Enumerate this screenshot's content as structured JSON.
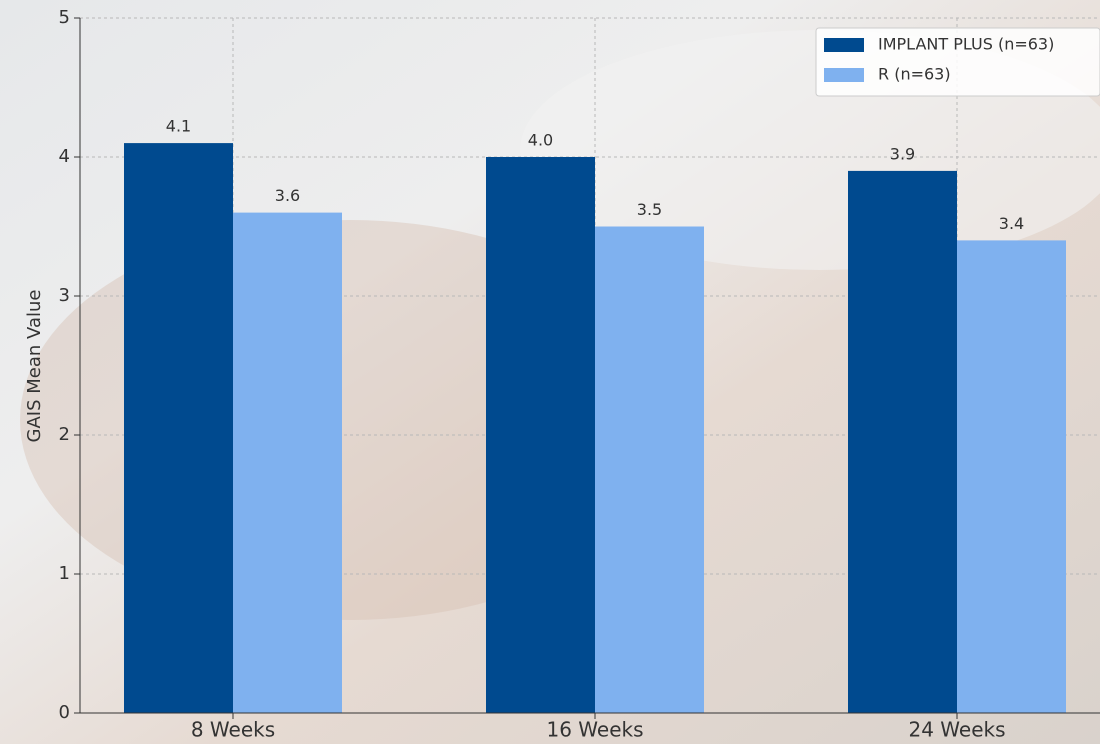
{
  "chart_data": {
    "type": "bar",
    "y_label": "GAIS Mean Value",
    "categories": [
      "8 Weeks",
      "16 Weeks",
      "24 Weeks"
    ],
    "series": [
      {
        "name": "IMPLANT PLUS (n=63)",
        "color": "#004a8f",
        "values": [
          4.1,
          4.0,
          3.9
        ],
        "value_labels": [
          "4.1",
          "4.0",
          "3.9"
        ]
      },
      {
        "name": "R (n=63)",
        "color": "#7fb1ef",
        "values": [
          3.6,
          3.5,
          3.4
        ],
        "value_labels": [
          "3.6",
          "3.5",
          "3.4"
        ]
      }
    ],
    "ylim": [
      0,
      5
    ],
    "yticks": [
      0,
      1,
      2,
      3,
      4,
      5
    ],
    "grid": true,
    "legend": "upper right"
  }
}
